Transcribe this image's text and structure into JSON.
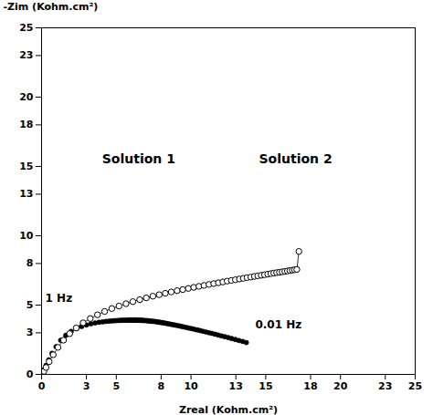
{
  "chart_data": {
    "type": "scatter",
    "xlabel": "Zreal (Kohm.cm²)",
    "ylabel": "-Zim (Kohm.cm²)",
    "xlim": [
      0,
      25
    ],
    "ylim": [
      0,
      25
    ],
    "xticks": [
      0,
      3,
      5,
      8,
      10,
      13,
      15,
      18,
      20,
      23,
      25
    ],
    "yticks": [
      0,
      3,
      5,
      8,
      10,
      13,
      15,
      18,
      20,
      23,
      25
    ],
    "grid": false,
    "series": [
      {
        "type": "scatter",
        "marker": "filled_circle",
        "line_style": "none",
        "color": "#000000",
        "x": [
          0.02,
          0.05,
          0.1,
          0.18,
          0.3,
          0.48,
          0.7,
          0.97,
          1.28,
          1.62,
          1.98,
          2.34,
          2.68,
          3.0,
          3.3,
          3.58,
          3.84,
          4.08,
          4.3,
          4.5,
          4.68,
          4.84,
          4.99,
          5.13,
          5.26,
          5.38,
          5.49,
          5.59,
          5.69,
          5.78,
          5.86,
          5.94,
          6.02,
          6.09,
          6.16,
          6.23,
          6.3,
          6.37,
          6.44,
          6.51,
          6.58,
          6.65,
          6.72,
          6.79,
          6.86,
          6.94,
          7.02,
          7.1,
          7.18,
          7.26,
          7.34,
          7.43,
          7.52,
          7.62,
          7.72,
          7.82,
          7.92,
          8.03,
          8.14,
          8.26,
          8.38,
          8.51,
          8.64,
          8.78,
          8.92,
          9.07,
          9.22,
          9.38,
          9.54,
          9.71,
          9.88,
          10.06,
          10.24,
          10.42,
          10.61,
          10.8,
          11.0,
          11.2,
          11.4,
          11.61,
          11.82,
          12.04,
          12.26,
          12.49,
          12.72,
          12.96,
          13.2,
          13.45,
          13.7
        ],
        "values": [
          0.02,
          0.07,
          0.16,
          0.35,
          0.65,
          1.05,
          1.52,
          2.0,
          2.46,
          2.82,
          3.1,
          3.3,
          3.46,
          3.57,
          3.65,
          3.71,
          3.76,
          3.79,
          3.82,
          3.84,
          3.86,
          3.87,
          3.88,
          3.89,
          3.9,
          3.9,
          3.91,
          3.91,
          3.91,
          3.91,
          3.92,
          3.92,
          3.92,
          3.92,
          3.92,
          3.92,
          3.92,
          3.91,
          3.91,
          3.91,
          3.9,
          3.9,
          3.9,
          3.89,
          3.89,
          3.88,
          3.88,
          3.87,
          3.86,
          3.85,
          3.84,
          3.83,
          3.82,
          3.81,
          3.79,
          3.78,
          3.76,
          3.74,
          3.72,
          3.7,
          3.67,
          3.65,
          3.62,
          3.59,
          3.56,
          3.53,
          3.5,
          3.46,
          3.42,
          3.38,
          3.34,
          3.3,
          3.25,
          3.21,
          3.16,
          3.11,
          3.06,
          3.01,
          2.96,
          2.9,
          2.84,
          2.78,
          2.72,
          2.66,
          2.59,
          2.52,
          2.45,
          2.38,
          2.3
        ]
      },
      {
        "type": "line",
        "marker": "open_circle",
        "line_style": "solid",
        "color": "#000000",
        "x": [
          0.02,
          0.07,
          0.16,
          0.3,
          0.51,
          0.78,
          1.1,
          1.47,
          1.88,
          2.32,
          2.78,
          3.26,
          3.74,
          4.22,
          4.7,
          5.18,
          5.65,
          6.11,
          6.57,
          7.01,
          7.45,
          7.87,
          8.28,
          8.68,
          9.07,
          9.45,
          9.82,
          10.18,
          10.53,
          10.87,
          11.2,
          11.52,
          11.83,
          12.13,
          12.42,
          12.7,
          12.97,
          13.24,
          13.5,
          13.75,
          14.0,
          14.24,
          14.47,
          14.7,
          14.92,
          15.13,
          15.34,
          15.54,
          15.73,
          15.92,
          16.1,
          16.28,
          16.45,
          16.62,
          16.78,
          16.93,
          17.08,
          17.22
        ],
        "values": [
          0.02,
          0.08,
          0.22,
          0.5,
          0.92,
          1.42,
          1.95,
          2.47,
          2.94,
          3.35,
          3.72,
          4.03,
          4.3,
          4.54,
          4.75,
          4.93,
          5.1,
          5.25,
          5.39,
          5.52,
          5.64,
          5.75,
          5.85,
          5.95,
          6.04,
          6.12,
          6.2,
          6.28,
          6.35,
          6.42,
          6.49,
          6.55,
          6.61,
          6.67,
          6.73,
          6.78,
          6.83,
          6.88,
          6.93,
          6.98,
          7.02,
          7.07,
          7.11,
          7.15,
          7.19,
          7.23,
          7.27,
          7.31,
          7.34,
          7.37,
          7.4,
          7.43,
          7.46,
          7.49,
          7.52,
          7.55,
          7.57,
          8.87
        ]
      }
    ],
    "annotations": [
      {
        "text": "Solution 1",
        "x": 6.5,
        "y": 15.5
      },
      {
        "text": "Solution 2",
        "x": 17.0,
        "y": 15.5
      },
      {
        "text": "1 Hz",
        "x": 0.25,
        "y": 5.2
      },
      {
        "text": "0.01 Hz",
        "x": 14.3,
        "y": 3.55
      }
    ]
  }
}
